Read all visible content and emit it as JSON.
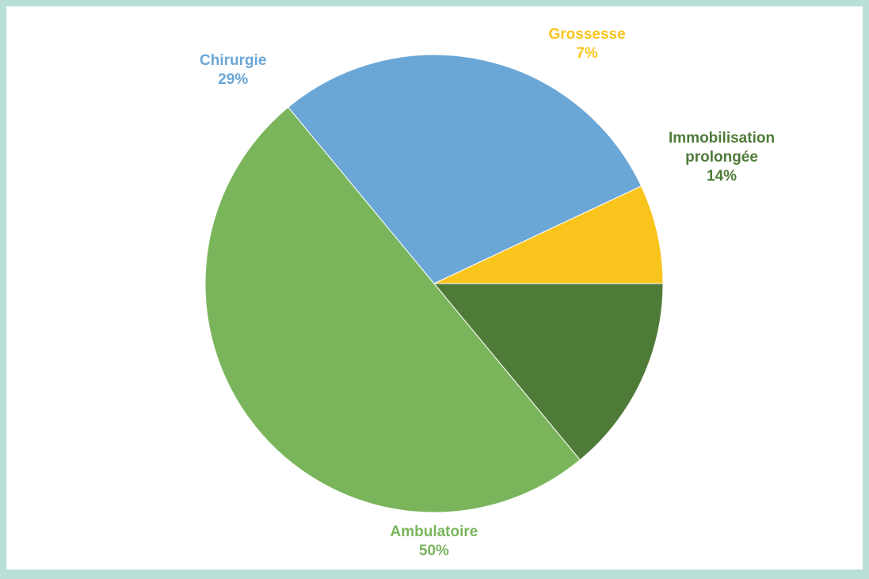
{
  "chart_data": {
    "type": "pie",
    "slices": [
      {
        "label": "Immobilisation prolongée",
        "label_lines": [
          "Immobilisation",
          "prolongée"
        ],
        "value": 14,
        "value_label": "14%",
        "color": "#4f7b38"
      },
      {
        "label": "Ambulatoire",
        "label_lines": [
          "Ambulatoire"
        ],
        "value": 50,
        "value_label": "50%",
        "color": "#7ab55c"
      },
      {
        "label": "Chirurgie",
        "label_lines": [
          "Chirurgie"
        ],
        "value": 29,
        "value_label": "29%",
        "color": "#6aa6d6"
      },
      {
        "label": "Grossesse",
        "label_lines": [
          "Grossesse"
        ],
        "value": 7,
        "value_label": "7%",
        "color": "#f9c51d"
      }
    ],
    "start_angle_deg": 0,
    "direction": "clockwise",
    "start_position": "east",
    "legend": "none",
    "labels": "outside slices, colored same as slice",
    "border_color": "#b9e0d6"
  }
}
